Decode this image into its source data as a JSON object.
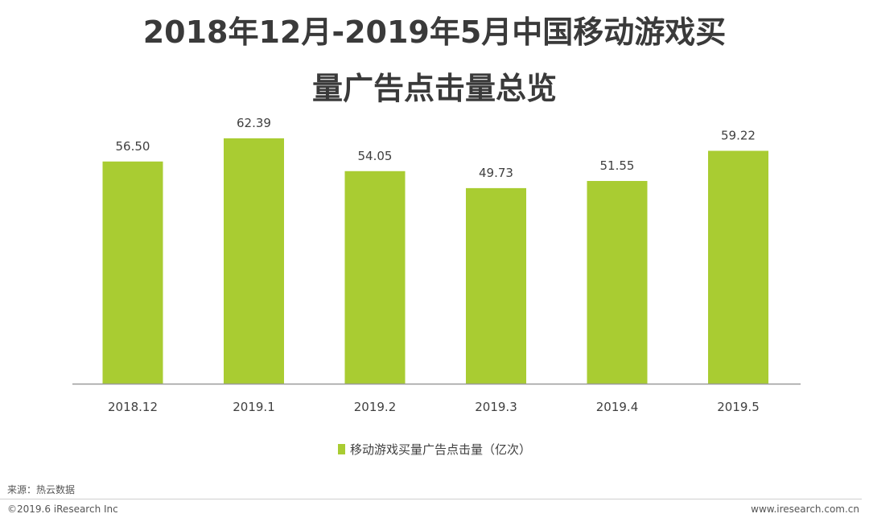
{
  "title_line1": "2018年12月-2019年5月中国移动游戏买",
  "title_line2": "量广告点击量总览",
  "legend_label": "移动游戏买量广告点击量（亿次）",
  "source": "来源：热云数据",
  "copyright": "©2019.6 iResearch Inc",
  "website": "www.iresearch.com.cn",
  "colors": {
    "bar": "#a9cc32",
    "axis": "#9a9a9a",
    "text": "#404040"
  },
  "chart_data": {
    "type": "bar",
    "title": "2018年12月-2019年5月中国移动游戏买量广告点击量总览",
    "categories": [
      "2018.12",
      "2019.1",
      "2019.2",
      "2019.3",
      "2019.4",
      "2019.5"
    ],
    "series": [
      {
        "name": "移动游戏买量广告点击量（亿次）",
        "values": [
          56.5,
          62.39,
          54.05,
          49.73,
          51.55,
          59.22
        ],
        "labels": [
          "56.50",
          "62.39",
          "54.05",
          "49.73",
          "51.55",
          "59.22"
        ]
      }
    ],
    "ylim": [
      0,
      70
    ],
    "grid": false,
    "legend_position": "bottom"
  }
}
